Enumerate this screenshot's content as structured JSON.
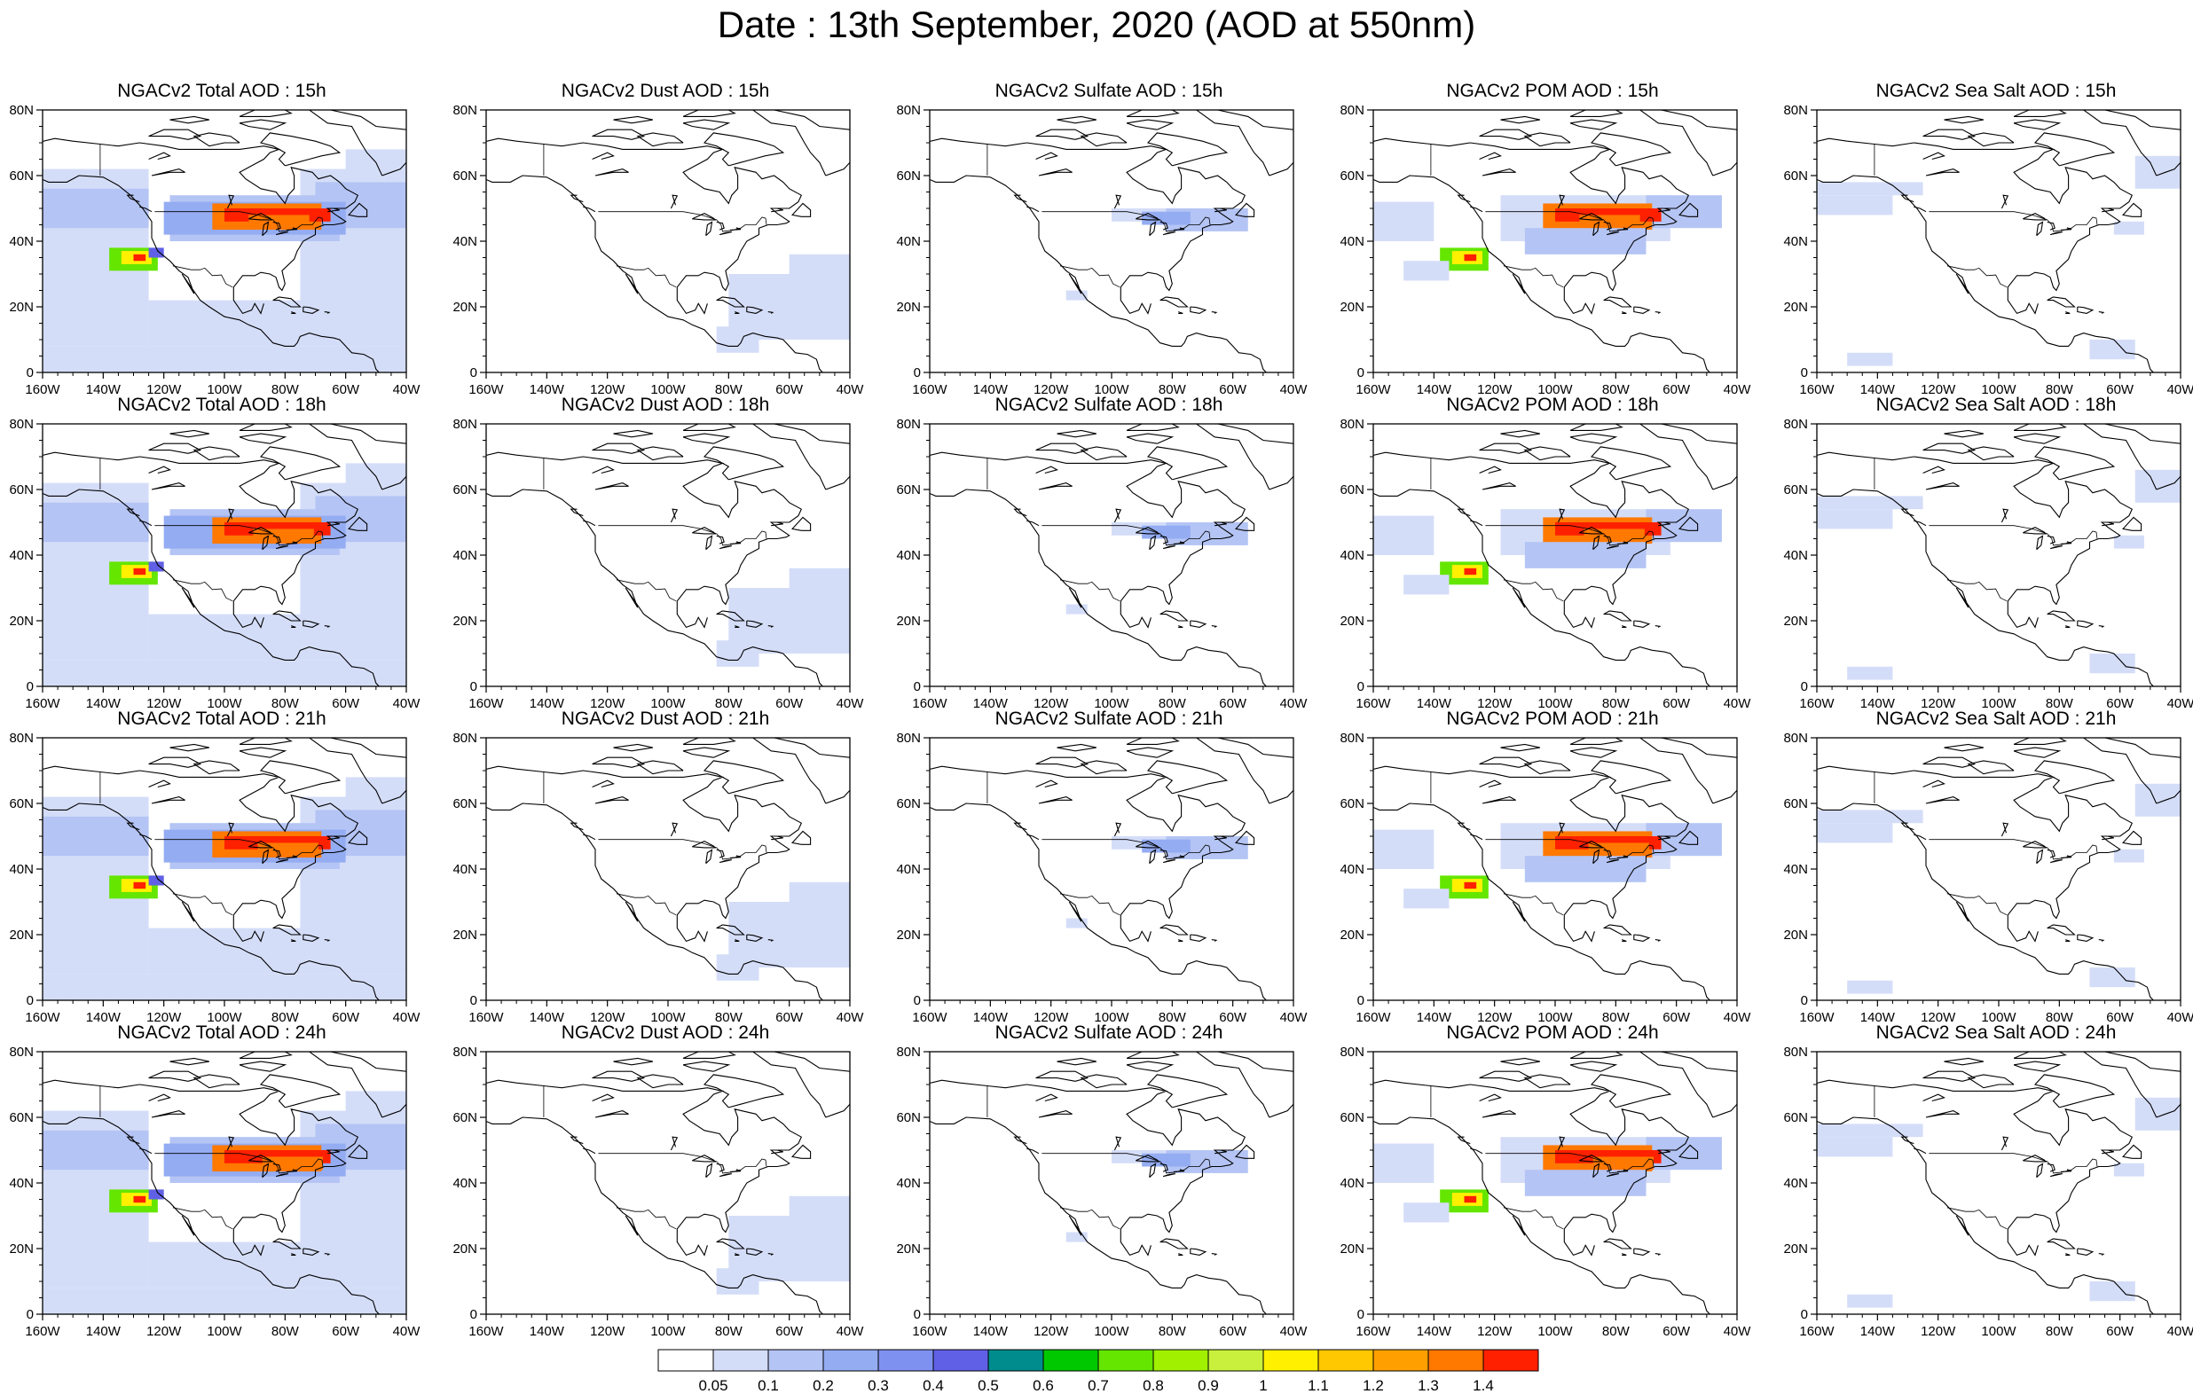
{
  "title": "Date : 13th September, 2020 (AOD at 550nm)",
  "axes": {
    "x_ticks": [
      "160W",
      "140W",
      "120W",
      "100W",
      "80W",
      "60W",
      "40W"
    ],
    "y_ticks": [
      "80N",
      "60N",
      "40N",
      "20N",
      "0"
    ]
  },
  "panels": [
    {
      "title": "NGACv2 Total AOD : 15h",
      "species": "total"
    },
    {
      "title": "NGACv2 Dust AOD : 15h",
      "species": "dust"
    },
    {
      "title": "NGACv2 Sulfate AOD : 15h",
      "species": "sulfate"
    },
    {
      "title": "NGACv2 POM AOD : 15h",
      "species": "pom"
    },
    {
      "title": "NGACv2 Sea Salt AOD : 15h",
      "species": "seasalt"
    },
    {
      "title": "NGACv2 Total AOD : 18h",
      "species": "total"
    },
    {
      "title": "NGACv2 Dust AOD : 18h",
      "species": "dust"
    },
    {
      "title": "NGACv2 Sulfate AOD : 18h",
      "species": "sulfate"
    },
    {
      "title": "NGACv2 POM AOD : 18h",
      "species": "pom"
    },
    {
      "title": "NGACv2 Sea Salt AOD : 18h",
      "species": "seasalt"
    },
    {
      "title": "NGACv2 Total AOD : 21h",
      "species": "total"
    },
    {
      "title": "NGACv2 Dust AOD : 21h",
      "species": "dust"
    },
    {
      "title": "NGACv2 Sulfate AOD : 21h",
      "species": "sulfate"
    },
    {
      "title": "NGACv2 POM AOD : 21h",
      "species": "pom"
    },
    {
      "title": "NGACv2 Sea Salt AOD : 21h",
      "species": "seasalt"
    },
    {
      "title": "NGACv2 Total AOD : 24h",
      "species": "total"
    },
    {
      "title": "NGACv2 Dust AOD : 24h",
      "species": "dust"
    },
    {
      "title": "NGACv2 Sulfate AOD : 24h",
      "species": "sulfate"
    },
    {
      "title": "NGACv2 POM AOD : 24h",
      "species": "pom"
    },
    {
      "title": "NGACv2 Sea Salt  AOD : 24h",
      "species": "seasalt"
    }
  ],
  "colorbar": {
    "labels": [
      "0.05",
      "0.1",
      "0.2",
      "0.3",
      "0.4",
      "0.5",
      "0.6",
      "0.7",
      "0.8",
      "0.9",
      "1",
      "1.1",
      "1.2",
      "1.3",
      "1.4"
    ],
    "colors": [
      "#ffffff",
      "#d4ddf8",
      "#b4c4f4",
      "#94acf2",
      "#7f91f0",
      "#6060e6",
      "#0a64f0",
      "#008c8c",
      "#00c800",
      "#64e600",
      "#a0f000",
      "#c8f03c",
      "#fff000",
      "#ffc800",
      "#ffa000",
      "#ff7800",
      "#ff2000"
    ]
  },
  "colors": {
    "light_blue": "#d4ddf8",
    "mid_blue": "#b4c4f4",
    "smoke_red": "#ff2000",
    "smoke_orange": "#ff7800",
    "smoke_green": "#64e600",
    "smoke_yellow": "#fff000"
  }
}
